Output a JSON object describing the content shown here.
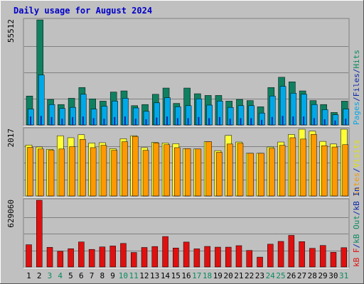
{
  "title": "Daily usage for August 2024",
  "panels": {
    "top": {
      "max_label": "55512",
      "legend": [
        {
          "text": "Pages",
          "color": "#00a8e8"
        },
        {
          "text": "/",
          "color": "#0a2aa8"
        },
        {
          "text": "Files",
          "color": "#0a2aa8"
        },
        {
          "text": "/",
          "color": "#0a2aa8"
        },
        {
          "text": "Hits",
          "color": "#0a8a60"
        }
      ]
    },
    "middle": {
      "max_label": "2017",
      "legend": [
        {
          "text": "Sites",
          "color": "#f39a00"
        },
        {
          "text": "/",
          "color": "#0a2aa8"
        },
        {
          "text": "Visits",
          "color": "#e3e000"
        }
      ]
    },
    "bottom": {
      "max_label": "629060",
      "legend": [
        {
          "text": "kB F",
          "color": "#e01010"
        },
        {
          "text": "/",
          "color": "#0a2aa8"
        },
        {
          "text": "kB Out",
          "color": "#0a8a60"
        },
        {
          "text": "/",
          "color": "#0a2aa8"
        },
        {
          "text": "kB In",
          "color": "#0a2aa8"
        }
      ]
    }
  },
  "colors": {
    "hits": "#0f8060",
    "files": "#00a8e8",
    "pages": "#0a2aa8",
    "visits": "#ffff33",
    "sites": "#ff9900",
    "kbf": "#e01010",
    "background": "#c0c0c0",
    "title": "#0000c8",
    "weekend_label": "#0a8a60",
    "weekday_label": "#000000"
  },
  "chart_data": [
    {
      "type": "bar",
      "categories": [
        "1",
        "2",
        "3",
        "4",
        "5",
        "6",
        "7",
        "8",
        "9",
        "10",
        "11",
        "12",
        "13",
        "14",
        "15",
        "16",
        "17",
        "18",
        "19",
        "20",
        "21",
        "22",
        "23",
        "24",
        "25",
        "26",
        "27",
        "28",
        "29",
        "30",
        "31"
      ],
      "weekend_days": [
        "3",
        "4",
        "10",
        "11",
        "17",
        "18",
        "24",
        "25",
        "31"
      ],
      "ylim": [
        0,
        55512
      ],
      "series": [
        {
          "name": "Hits",
          "values": [
            15300,
            55512,
            13500,
            10800,
            14100,
            19800,
            13800,
            12600,
            17400,
            18000,
            10200,
            10800,
            16200,
            19500,
            11400,
            19500,
            16500,
            15600,
            15600,
            12600,
            13500,
            12900,
            9600,
            19800,
            25200,
            22800,
            18000,
            12900,
            10800,
            6600,
            12600
          ]
        },
        {
          "name": "Files",
          "values": [
            8400,
            26400,
            10800,
            8700,
            9300,
            16200,
            8400,
            9900,
            12600,
            14100,
            9000,
            7200,
            11700,
            14400,
            9600,
            10200,
            13800,
            10500,
            12600,
            9300,
            10200,
            10200,
            6300,
            15300,
            20400,
            16800,
            16200,
            10800,
            8100,
            5400,
            8400
          ]
        },
        {
          "name": "Pages",
          "values": [
            4500,
            4800,
            4200,
            3300,
            4200,
            4500,
            3600,
            3300,
            4200,
            4500,
            3300,
            3000,
            3900,
            4500,
            3600,
            3600,
            4200,
            3600,
            4200,
            3300,
            3600,
            3600,
            2700,
            4200,
            4800,
            4500,
            4500,
            3600,
            3000,
            2400,
            3300
          ]
        }
      ]
    },
    {
      "type": "bar",
      "categories": [
        "1",
        "2",
        "3",
        "4",
        "5",
        "6",
        "7",
        "8",
        "9",
        "10",
        "11",
        "12",
        "13",
        "14",
        "15",
        "16",
        "17",
        "18",
        "19",
        "20",
        "21",
        "22",
        "23",
        "24",
        "25",
        "26",
        "27",
        "28",
        "29",
        "30",
        "31"
      ],
      "ylim": [
        0,
        2017
      ],
      "series": [
        {
          "name": "Visits",
          "values": [
            1540,
            1480,
            1410,
            1820,
            1760,
            1850,
            1600,
            1610,
            1430,
            1730,
            1820,
            1460,
            1620,
            1600,
            1580,
            1430,
            1420,
            1640,
            1370,
            1830,
            1630,
            1290,
            1290,
            1480,
            1630,
            1860,
            2017,
            1960,
            1650,
            1570,
            2017
          ]
        },
        {
          "name": "Sites",
          "values": [
            1470,
            1420,
            1380,
            1420,
            1490,
            1710,
            1460,
            1530,
            1380,
            1640,
            1800,
            1380,
            1600,
            1550,
            1460,
            1430,
            1420,
            1640,
            1320,
            1570,
            1590,
            1290,
            1290,
            1440,
            1530,
            1760,
            1720,
            1860,
            1520,
            1480,
            1550
          ]
        }
      ]
    },
    {
      "type": "bar",
      "categories": [
        "1",
        "2",
        "3",
        "4",
        "5",
        "6",
        "7",
        "8",
        "9",
        "10",
        "11",
        "12",
        "13",
        "14",
        "15",
        "16",
        "17",
        "18",
        "19",
        "20",
        "21",
        "22",
        "23",
        "24",
        "25",
        "26",
        "27",
        "28",
        "29",
        "30",
        "31"
      ],
      "ylim": [
        0,
        629060
      ],
      "series": [
        {
          "name": "kB F",
          "values": [
            210000,
            629060,
            185000,
            148000,
            172000,
            236000,
            166000,
            189000,
            198000,
            222000,
            137000,
            184000,
            193000,
            287000,
            179000,
            235000,
            171000,
            194000,
            187000,
            187000,
            201000,
            156000,
            93000,
            215000,
            241000,
            298000,
            239000,
            176000,
            203000,
            139000,
            182000
          ]
        }
      ]
    }
  ]
}
